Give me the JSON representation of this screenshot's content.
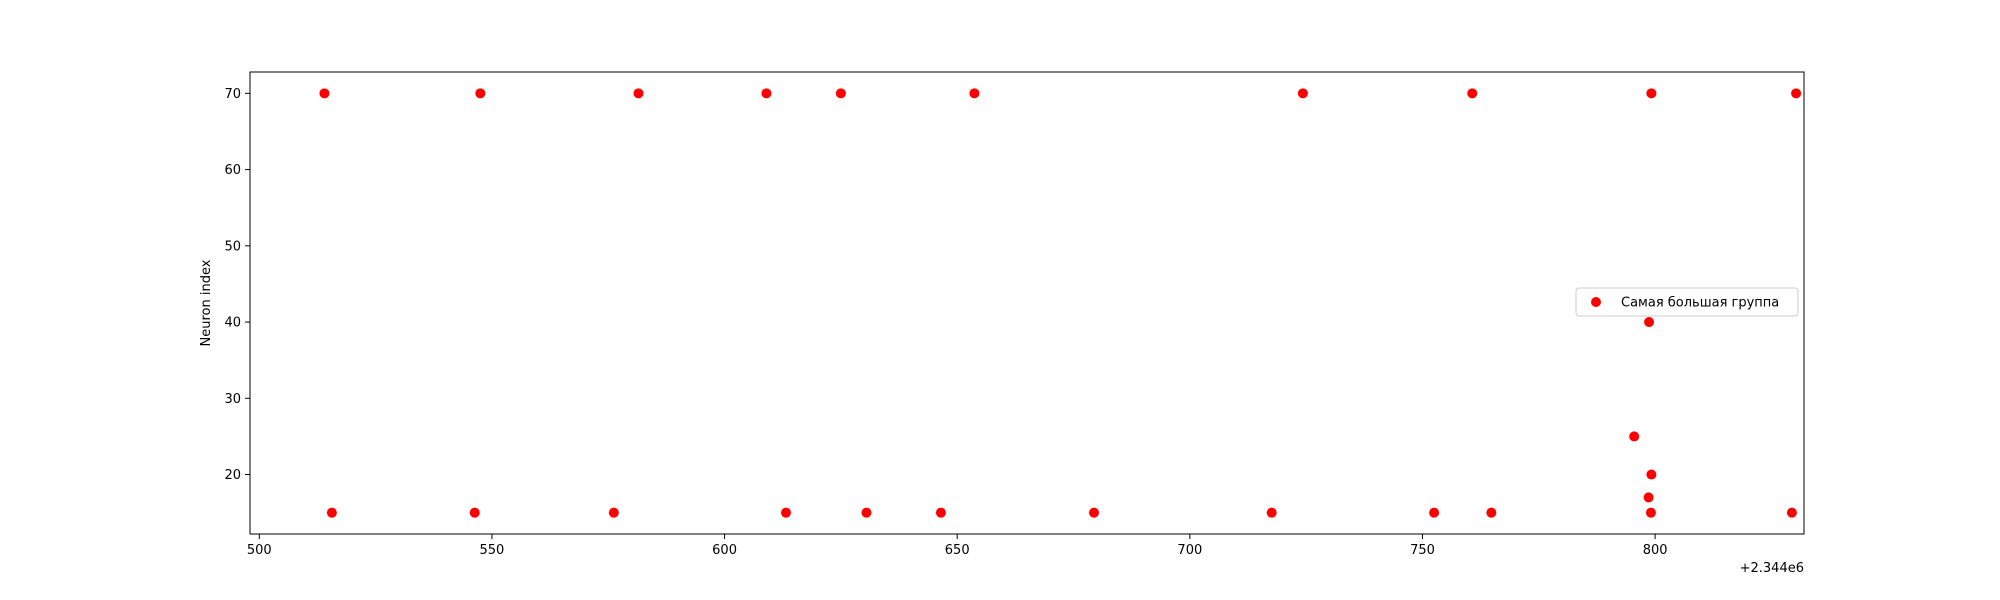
{
  "chart_data": {
    "type": "scatter",
    "title": "",
    "xlabel": "",
    "ylabel": "Neuron index",
    "x_offset_label": "+2.344e6",
    "xlim": [
      498,
      832
    ],
    "ylim": [
      12.2,
      72.8
    ],
    "x_ticks": [
      500,
      550,
      600,
      650,
      700,
      750,
      800
    ],
    "y_ticks": [
      20,
      30,
      40,
      50,
      60,
      70
    ],
    "grid": false,
    "legend_position": "center-right",
    "series": [
      {
        "name": "Самая большая группа",
        "color": "#ff0000",
        "marker": "circle",
        "points": [
          {
            "x": 514,
            "y": 70
          },
          {
            "x": 547.5,
            "y": 70
          },
          {
            "x": 581.5,
            "y": 70
          },
          {
            "x": 609,
            "y": 70
          },
          {
            "x": 625,
            "y": 70
          },
          {
            "x": 653.7,
            "y": 70
          },
          {
            "x": 724.3,
            "y": 70
          },
          {
            "x": 760.7,
            "y": 70
          },
          {
            "x": 799.2,
            "y": 70
          },
          {
            "x": 830.3,
            "y": 70
          },
          {
            "x": 515.6,
            "y": 15
          },
          {
            "x": 546.3,
            "y": 15
          },
          {
            "x": 576.2,
            "y": 15
          },
          {
            "x": 613.2,
            "y": 15
          },
          {
            "x": 630.5,
            "y": 15
          },
          {
            "x": 646.5,
            "y": 15
          },
          {
            "x": 679.4,
            "y": 15
          },
          {
            "x": 717.6,
            "y": 15
          },
          {
            "x": 752.5,
            "y": 15
          },
          {
            "x": 764.8,
            "y": 15
          },
          {
            "x": 799.1,
            "y": 15
          },
          {
            "x": 829.4,
            "y": 15
          },
          {
            "x": 798.7,
            "y": 40
          },
          {
            "x": 795.5,
            "y": 25
          },
          {
            "x": 799.2,
            "y": 20
          },
          {
            "x": 798.6,
            "y": 17
          }
        ]
      }
    ]
  }
}
